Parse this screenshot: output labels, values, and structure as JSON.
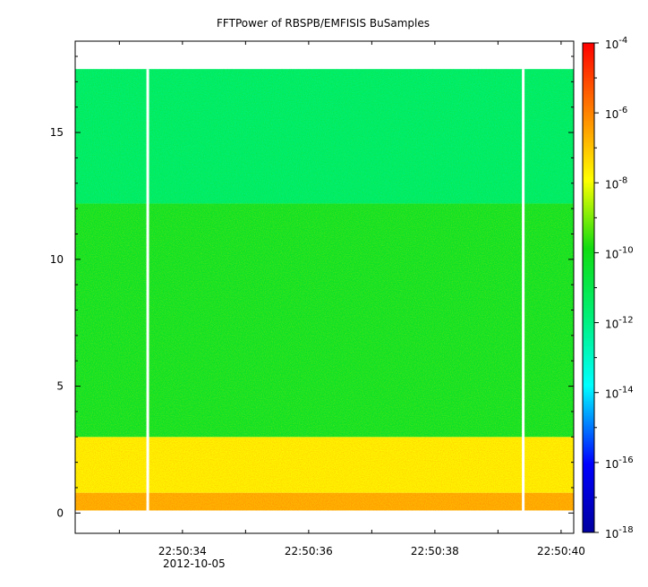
{
  "chart_data": {
    "type": "heatmap",
    "title": "FFTPower of RBSPB/EMFISIS  BuSamples",
    "xlabel": "",
    "ylabel": "",
    "x_tick_labels": [
      "22:50:34",
      "22:50:36",
      "22:50:38",
      "22:50:40"
    ],
    "x_date_label": "2012-10-05",
    "x_range_seconds": [
      32.3,
      40.2
    ],
    "y_range": [
      -0.8,
      18.6
    ],
    "y_ticks": [
      0,
      5,
      10,
      15
    ],
    "data_extent": {
      "x_start_seconds": 32.3,
      "x_end_seconds": 40.2,
      "y_min": 0.1,
      "y_max": 17.5
    },
    "gaps_seconds": [
      33.45,
      39.4
    ],
    "power_bands": [
      {
        "y_from": 0.1,
        "y_to": 0.8,
        "log10_power": -6.8
      },
      {
        "y_from": 0.8,
        "y_to": 3.0,
        "log10_power": -7.8
      },
      {
        "y_from": 3.0,
        "y_to": 12.2,
        "log10_power": -10.4
      },
      {
        "y_from": 12.2,
        "y_to": 17.5,
        "log10_power": -11.8
      }
    ],
    "colorbar": {
      "scale": "log",
      "range": [
        1e-18,
        0.0001
      ],
      "tick_exponents": [
        -4,
        -6,
        -8,
        -10,
        -12,
        -14,
        -16,
        -18
      ]
    }
  }
}
